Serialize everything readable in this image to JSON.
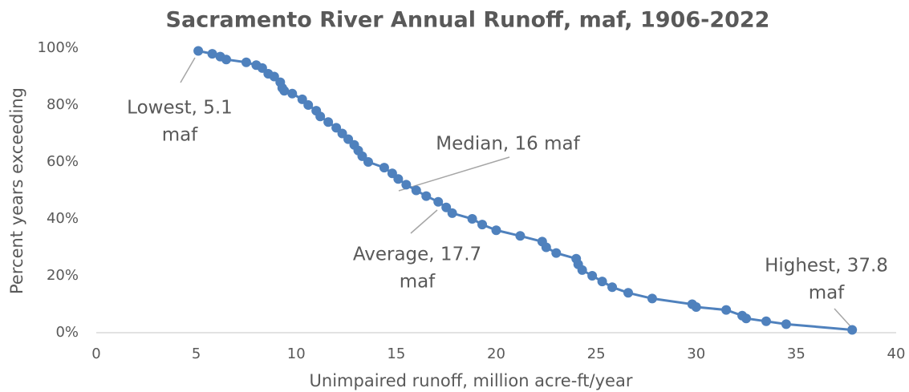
{
  "chart_data": {
    "type": "scatter",
    "title": "Sacramento River Annual Runoff, maf, 1906-2022",
    "x_label": "Unimpaired runoff, million acre-ft/year",
    "y_label": "Percent years exceeding",
    "xlim": [
      0,
      40
    ],
    "ylim": [
      0,
      100
    ],
    "xticks": [
      0,
      5,
      10,
      15,
      20,
      25,
      30,
      35,
      40
    ],
    "yticks": [
      {
        "value": 0,
        "label": "0%"
      },
      {
        "value": 20,
        "label": "20%"
      },
      {
        "value": 40,
        "label": "40%"
      },
      {
        "value": 60,
        "label": "60%"
      },
      {
        "value": 80,
        "label": "80%"
      },
      {
        "value": 100,
        "label": "100%"
      }
    ],
    "grid": false,
    "series": [
      {
        "color": "#4f81bd",
        "x": [
          5.1,
          5.8,
          6.2,
          6.5,
          7.5,
          8.0,
          8.3,
          8.6,
          8.9,
          9.2,
          9.3,
          9.4,
          9.8,
          10.3,
          10.6,
          11.0,
          11.2,
          11.6,
          12.0,
          12.3,
          12.6,
          12.9,
          13.1,
          13.3,
          13.6,
          14.4,
          14.8,
          15.1,
          15.5,
          16.0,
          16.5,
          17.1,
          17.5,
          17.8,
          18.8,
          19.3,
          20.0,
          21.2,
          22.3,
          22.5,
          23.0,
          24.0,
          24.1,
          24.3,
          24.8,
          25.3,
          25.8,
          26.6,
          27.8,
          29.8,
          30.0,
          31.5,
          32.3,
          32.5,
          33.5,
          34.5,
          37.8
        ],
        "values": [
          99,
          98,
          97,
          96,
          95,
          94,
          93,
          91,
          90,
          88,
          86,
          85,
          84,
          82,
          80,
          78,
          76,
          74,
          72,
          70,
          68,
          66,
          64,
          62,
          60,
          58,
          56,
          54,
          52,
          50,
          48,
          46,
          44,
          42,
          40,
          38,
          36,
          34,
          32,
          30,
          28,
          26,
          24,
          22,
          20,
          18,
          16,
          14,
          12,
          10,
          9,
          8,
          6,
          5,
          4,
          3,
          1
        ]
      }
    ],
    "annotations": [
      {
        "lines": [
          "Lowest, 5.1",
          "maf"
        ]
      },
      {
        "lines": [
          "Median, 16 maf"
        ]
      },
      {
        "lines": [
          "Average, 17.7",
          "maf"
        ]
      },
      {
        "lines": [
          "Highest, 37.8",
          "maf"
        ]
      }
    ]
  }
}
